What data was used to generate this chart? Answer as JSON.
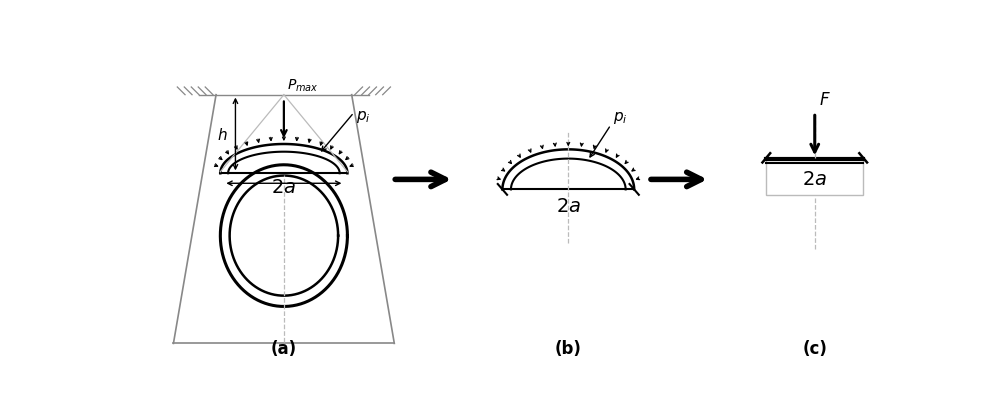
{
  "bg_color": "#ffffff",
  "line_color": "#000000",
  "gray_color": "#888888",
  "light_gray": "#bbbbbb",
  "fig_width": 10.0,
  "fig_height": 4.06,
  "label_a": "(a)",
  "label_b": "(b)",
  "label_c": "(c)"
}
